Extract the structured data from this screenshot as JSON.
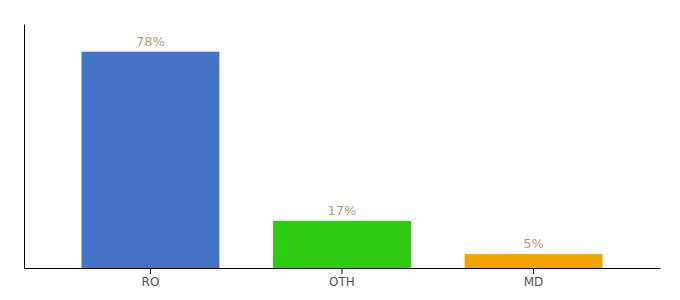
{
  "chart_data": {
    "type": "bar",
    "categories": [
      "RO",
      "OTH",
      "MD"
    ],
    "values": [
      78,
      17,
      5
    ],
    "colors": [
      "#4472c4",
      "#2ecc11",
      "#f0a500"
    ],
    "data_labels": true,
    "value_labels": [
      "78%",
      "17%",
      "5%"
    ],
    "ylim": [
      0,
      88
    ],
    "tick_labels": "x"
  }
}
